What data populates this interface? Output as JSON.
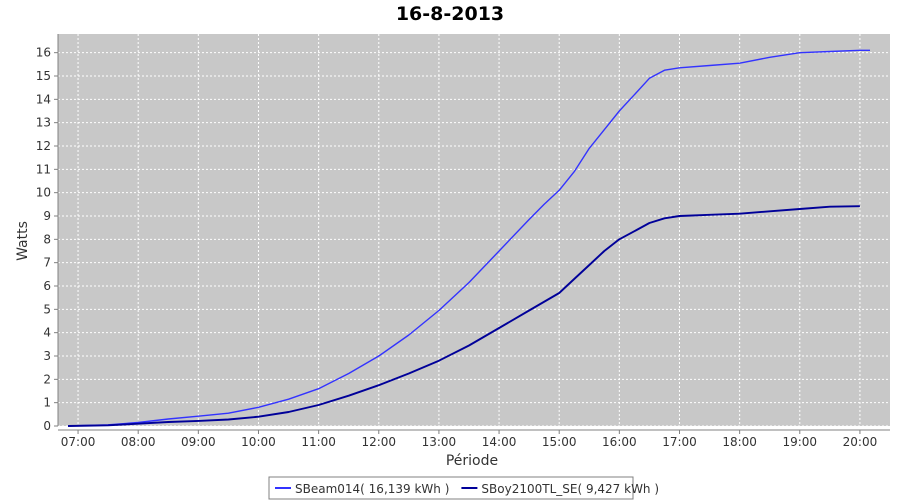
{
  "chart_data": {
    "type": "line",
    "title": "16-8-2013",
    "xlabel": "Période",
    "ylabel": "Watts",
    "x_ticks": [
      "07:00",
      "08:00",
      "09:00",
      "10:00",
      "11:00",
      "12:00",
      "13:00",
      "14:00",
      "15:00",
      "16:00",
      "17:00",
      "18:00",
      "19:00",
      "20:00"
    ],
    "xlim": [
      "06:40",
      "20:30"
    ],
    "ylim": [
      0,
      16.8
    ],
    "y_ticks": [
      0,
      1,
      2,
      3,
      4,
      5,
      6,
      7,
      8,
      9,
      10,
      11,
      12,
      13,
      14,
      15,
      16
    ],
    "grid": true,
    "legend_position": "bottom",
    "series": [
      {
        "name": "SBeam014( 16,139 kWh )",
        "color": "#3333ff",
        "x": [
          "06:50",
          "07:30",
          "08:00",
          "08:30",
          "09:00",
          "09:30",
          "10:00",
          "10:30",
          "11:00",
          "11:30",
          "12:00",
          "12:30",
          "13:00",
          "13:30",
          "14:00",
          "14:30",
          "14:45",
          "15:00",
          "15:15",
          "15:30",
          "15:45",
          "16:00",
          "16:15",
          "16:30",
          "16:45",
          "17:00",
          "17:30",
          "18:00",
          "18:30",
          "19:00",
          "19:30",
          "20:00",
          "20:10"
        ],
        "y": [
          0,
          0.05,
          0.15,
          0.3,
          0.42,
          0.55,
          0.8,
          1.15,
          1.6,
          2.25,
          3.0,
          3.9,
          4.95,
          6.15,
          7.5,
          8.85,
          9.5,
          10.1,
          10.9,
          11.9,
          12.7,
          13.5,
          14.2,
          14.9,
          15.25,
          15.35,
          15.45,
          15.55,
          15.8,
          16.0,
          16.05,
          16.1,
          16.1
        ]
      },
      {
        "name": "SBoy2100TL_SE( 9,427 kWh )",
        "color": "#000099",
        "x": [
          "06:50",
          "07:30",
          "08:00",
          "08:30",
          "09:00",
          "09:30",
          "10:00",
          "10:30",
          "11:00",
          "11:30",
          "12:00",
          "12:30",
          "13:00",
          "13:30",
          "14:00",
          "14:30",
          "15:00",
          "15:15",
          "15:30",
          "15:45",
          "16:00",
          "16:15",
          "16:30",
          "16:45",
          "17:00",
          "17:30",
          "18:00",
          "18:30",
          "19:00",
          "19:30",
          "20:00"
        ],
        "y": [
          0,
          0.03,
          0.1,
          0.17,
          0.22,
          0.28,
          0.4,
          0.6,
          0.9,
          1.3,
          1.75,
          2.25,
          2.8,
          3.45,
          4.2,
          4.95,
          5.7,
          6.3,
          6.9,
          7.5,
          8.0,
          8.35,
          8.7,
          8.9,
          9.0,
          9.05,
          9.1,
          9.2,
          9.3,
          9.4,
          9.42
        ]
      }
    ]
  }
}
